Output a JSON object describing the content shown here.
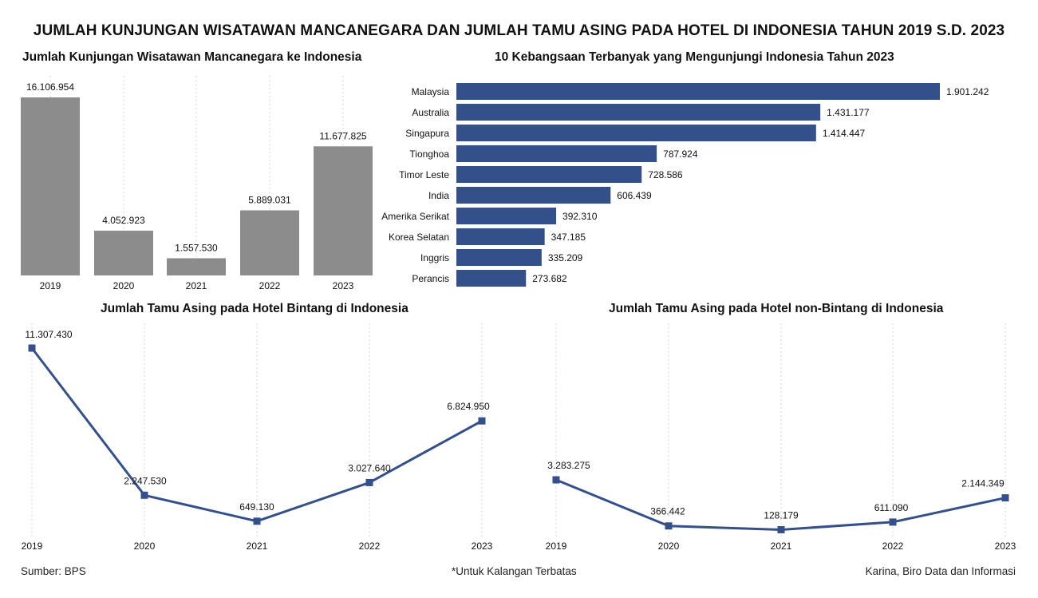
{
  "title": "JUMLAH KUNJUNGAN WISATAWAN MANCANEGARA DAN JUMLAH TAMU ASING PADA HOTEL DI INDONESIA TAHUN 2019 S.D. 2023",
  "footer": {
    "source": "Sumber: BPS",
    "note": "*Untuk Kalangan Terbatas",
    "credit": "Karina, Biro Data dan Informasi"
  },
  "chart_data": [
    {
      "type": "bar",
      "title": "Jumlah Kunjungan Wisatawan Mancanegara ke Indonesia",
      "categories": [
        "2019",
        "2020",
        "2021",
        "2022",
        "2023"
      ],
      "values": [
        16106954,
        4052923,
        1557530,
        5889031,
        11677825
      ],
      "labels": [
        "16.106.954",
        "4.052.923",
        "1.557.530",
        "5.889.031",
        "11.677.825"
      ],
      "color": "#8c8c8c",
      "ylim": [
        0,
        16106954
      ],
      "grid": "vertical dotted"
    },
    {
      "type": "bar",
      "orientation": "horizontal",
      "title": "10 Kebangsaan Terbanyak yang Mengunjungi Indonesia Tahun 2023",
      "categories": [
        "Malaysia",
        "Australia",
        "Singapura",
        "Tionghoa",
        "Timor Leste",
        "India",
        "Amerika Serikat",
        "Korea Selatan",
        "Inggris",
        "Perancis"
      ],
      "values": [
        1901242,
        1431177,
        1414447,
        787924,
        728586,
        606439,
        392310,
        347185,
        335209,
        273682
      ],
      "labels": [
        "1.901.242",
        "1.431.177",
        "1.414.447",
        "787.924",
        "728.586",
        "606.439",
        "392.310",
        "347.185",
        "335.209",
        "273.682"
      ],
      "color": "#34508a",
      "xlim": [
        0,
        1901242
      ]
    },
    {
      "type": "line",
      "title": "Jumlah Tamu Asing pada Hotel Bintang di Indonesia",
      "x": [
        "2019",
        "2020",
        "2021",
        "2022",
        "2023"
      ],
      "values": [
        11307430,
        2247530,
        649130,
        3027640,
        6824950
      ],
      "labels": [
        "11.307.430",
        "2.247.530",
        "649.130",
        "3.027.640",
        "6.824.950"
      ],
      "color": "#34508a",
      "ylim": [
        0,
        11307430
      ],
      "grid": "vertical dotted"
    },
    {
      "type": "line",
      "title": "Jumlah Tamu Asing pada Hotel non-Bintang di Indonesia",
      "x": [
        "2019",
        "2020",
        "2021",
        "2022",
        "2023"
      ],
      "values": [
        3283275,
        366442,
        128179,
        611090,
        2144349
      ],
      "labels": [
        "3.283.275",
        "366.442",
        "128.179",
        "611.090",
        "2.144.349"
      ],
      "color": "#34508a",
      "ylim": [
        0,
        3283275
      ],
      "grid": "vertical dotted"
    }
  ]
}
